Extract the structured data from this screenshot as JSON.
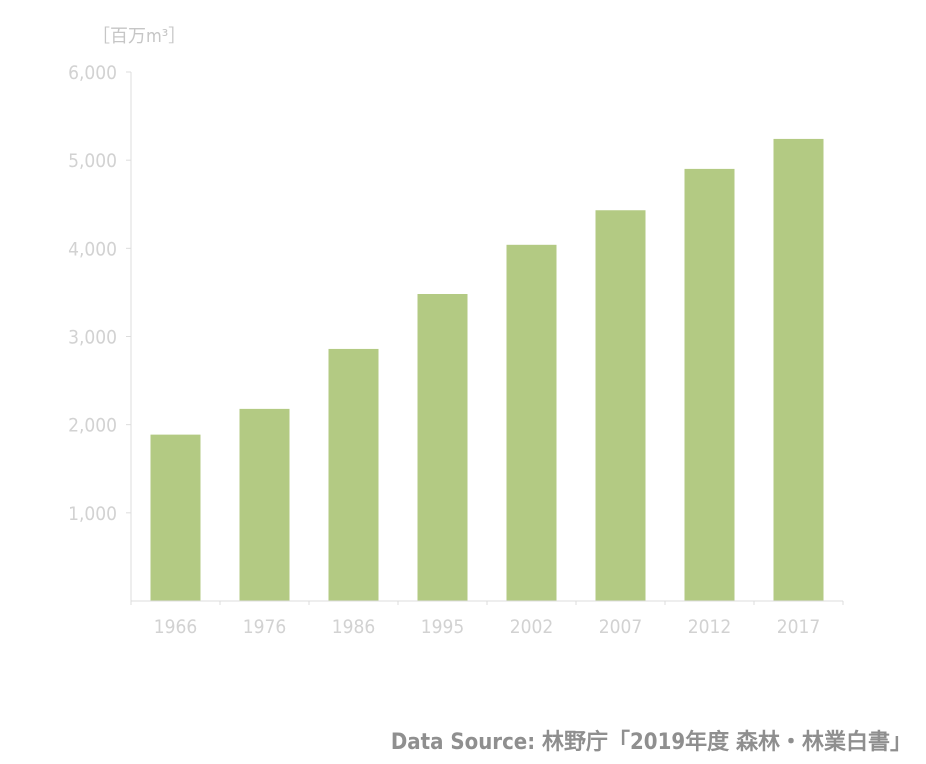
{
  "chart_data": {
    "type": "bar",
    "unit_label": "［百万m³］",
    "categories": [
      "1966",
      "1976",
      "1986",
      "1995",
      "2002",
      "2007",
      "2012",
      "2017"
    ],
    "values": [
      1887,
      2179,
      2859,
      3482,
      4040,
      4432,
      4901,
      5241
    ],
    "ylim": [
      0,
      6000
    ],
    "yticks": [
      1000,
      2000,
      3000,
      4000,
      5000,
      6000
    ],
    "ytick_labels": [
      "1,000",
      "2,000",
      "3,000",
      "4,000",
      "5,000",
      "6,000"
    ],
    "grid": false,
    "bar_color": "#b3ca83"
  },
  "source": "Data Source: 林野庁「2019年度 森林・林業白書」"
}
